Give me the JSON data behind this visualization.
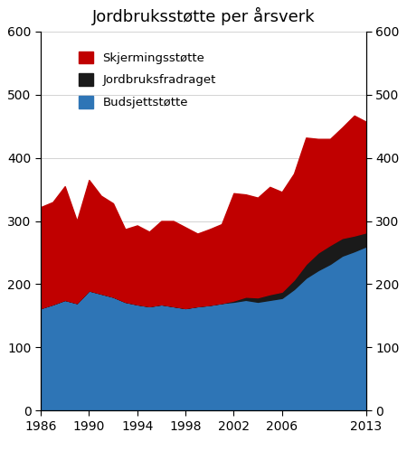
{
  "title": "Jordbruksstøtte per årsverk",
  "years": [
    1986,
    1987,
    1988,
    1989,
    1990,
    1991,
    1992,
    1993,
    1994,
    1995,
    1996,
    1997,
    1998,
    1999,
    2000,
    2001,
    2002,
    2003,
    2004,
    2005,
    2006,
    2007,
    2008,
    2009,
    2010,
    2011,
    2012,
    2013
  ],
  "budsjettstotte": [
    162,
    168,
    175,
    170,
    190,
    185,
    180,
    172,
    168,
    165,
    168,
    165,
    162,
    165,
    167,
    170,
    172,
    175,
    172,
    175,
    178,
    192,
    210,
    222,
    232,
    245,
    252,
    260
  ],
  "jordbruksfradraget": [
    0,
    0,
    0,
    0,
    0,
    0,
    0,
    0,
    0,
    0,
    0,
    0,
    0,
    0,
    0,
    0,
    2,
    5,
    7,
    9,
    10,
    15,
    22,
    28,
    30,
    28,
    25,
    22
  ],
  "skjermingsstotte": [
    160,
    162,
    180,
    130,
    175,
    155,
    148,
    115,
    125,
    118,
    132,
    135,
    128,
    115,
    120,
    125,
    170,
    162,
    158,
    170,
    158,
    168,
    200,
    180,
    168,
    175,
    190,
    175
  ],
  "ylim": [
    0,
    600
  ],
  "yticks": [
    0,
    100,
    200,
    300,
    400,
    500,
    600
  ],
  "xticks": [
    1986,
    1990,
    1994,
    1998,
    2002,
    2006,
    2013
  ],
  "color_budsjettstotte": "#2E75B6",
  "color_jordbruksfradraget": "#1a1a1a",
  "color_skjermingsstotte": "#C00000",
  "legend_labels": [
    "Skjermingsstøtte",
    "Jordbruksfradraget",
    "Budsjettstøtte"
  ],
  "legend_colors": [
    "#C00000",
    "#1a1a1a",
    "#2E75B6"
  ],
  "title_fontsize": 13,
  "tick_fontsize": 10
}
